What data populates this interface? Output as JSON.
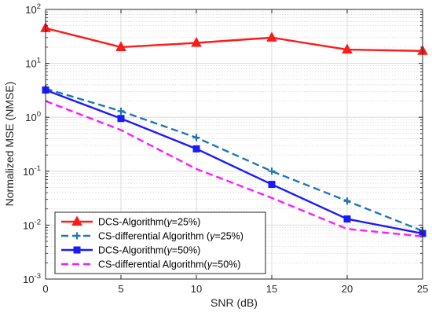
{
  "chart_data": {
    "type": "line",
    "xlabel": "SNR (dB)",
    "ylabel": "Normalized MSE (NMSE)",
    "x": [
      0,
      5,
      10,
      15,
      20,
      25
    ],
    "xlim": [
      0,
      25
    ],
    "ylim": [
      0.001,
      100
    ],
    "yscale": "log",
    "grid": true,
    "legend_position": "bottom-left",
    "x_ticks": [
      "0",
      "5",
      "10",
      "15",
      "20",
      "25"
    ],
    "y_ticks": [
      {
        "base": "10",
        "exp": "-3"
      },
      {
        "base": "10",
        "exp": "-2"
      },
      {
        "base": "10",
        "exp": "-1"
      },
      {
        "base": "10",
        "exp": "0"
      },
      {
        "base": "10",
        "exp": "1"
      },
      {
        "base": "10",
        "exp": "2"
      }
    ],
    "series": [
      {
        "name_pre": "DCS-Algorithm(",
        "name_sym": "γ",
        "name_post": "=25%)",
        "color": "#ff1a1a",
        "dash": "solid",
        "marker": "triangle",
        "values": [
          45,
          20,
          24,
          30,
          18,
          17
        ]
      },
      {
        "name_pre": "CS-differential Algorithm (",
        "name_sym": "γ",
        "name_post": "=25%)",
        "color": "#1f77b4",
        "dash": "dashed",
        "marker": "plus",
        "values": [
          3.4,
          1.3,
          0.42,
          0.1,
          0.028,
          0.0078
        ]
      },
      {
        "name_pre": "DCS-Algorithm(",
        "name_sym": "γ",
        "name_post": "=50%)",
        "color": "#1a1aff",
        "dash": "solid",
        "marker": "square",
        "values": [
          3.2,
          0.95,
          0.26,
          0.057,
          0.013,
          0.007
        ]
      },
      {
        "name_pre": "CS-differential Algorithm(",
        "name_sym": "γ",
        "name_post": "=50%)",
        "color": "#ff19ff",
        "dash": "dashed",
        "marker": "none",
        "values": [
          2.0,
          0.58,
          0.11,
          0.032,
          0.0085,
          0.0062
        ]
      }
    ]
  }
}
